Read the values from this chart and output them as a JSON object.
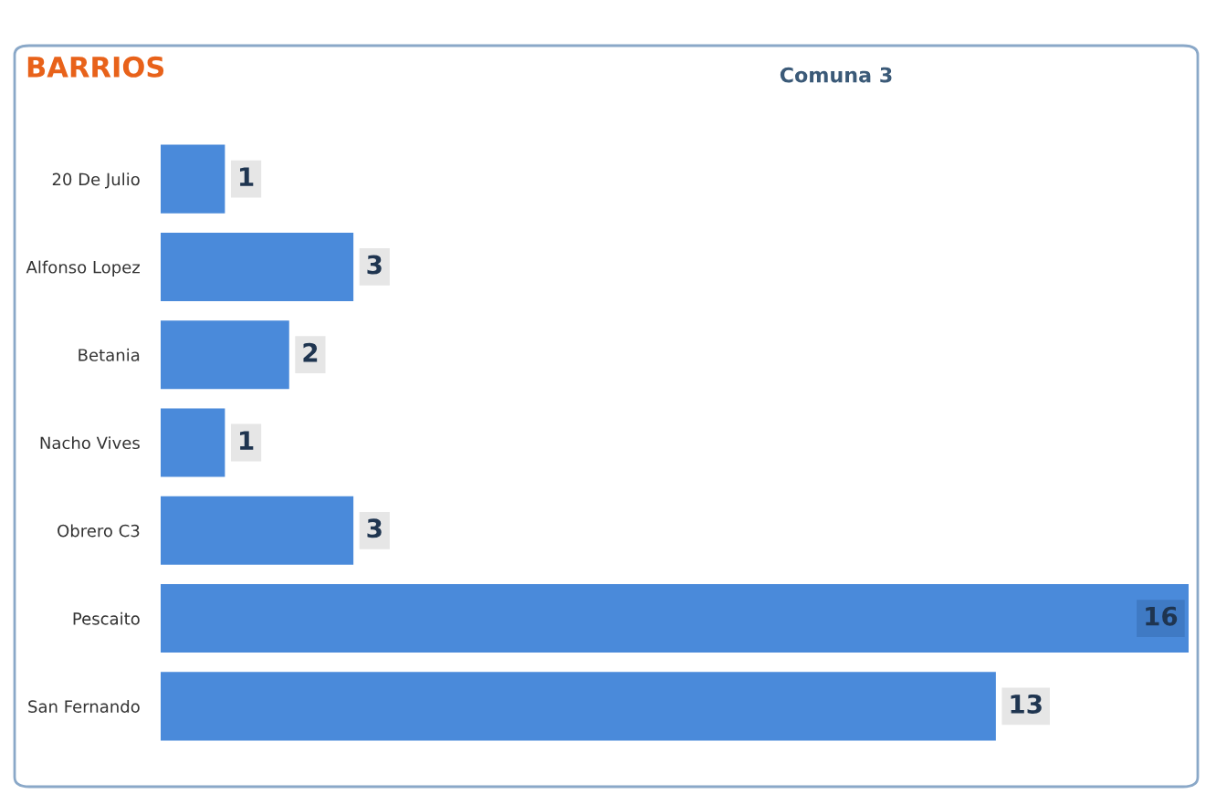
{
  "chart_data": {
    "type": "bar",
    "orientation": "horizontal",
    "title": "BARRIOS",
    "subtitle": "Comuna 3",
    "categories": [
      "20 De Julio",
      "Alfonso Lopez",
      "Betania",
      "Nacho Vives",
      "Obrero C3",
      "Pescaito",
      "San Fernando"
    ],
    "values": [
      1,
      3,
      2,
      1,
      3,
      16,
      13
    ],
    "color": "#4a8ada",
    "xlim": [
      0,
      16
    ],
    "tick_labels": "y",
    "data_labels": true
  }
}
